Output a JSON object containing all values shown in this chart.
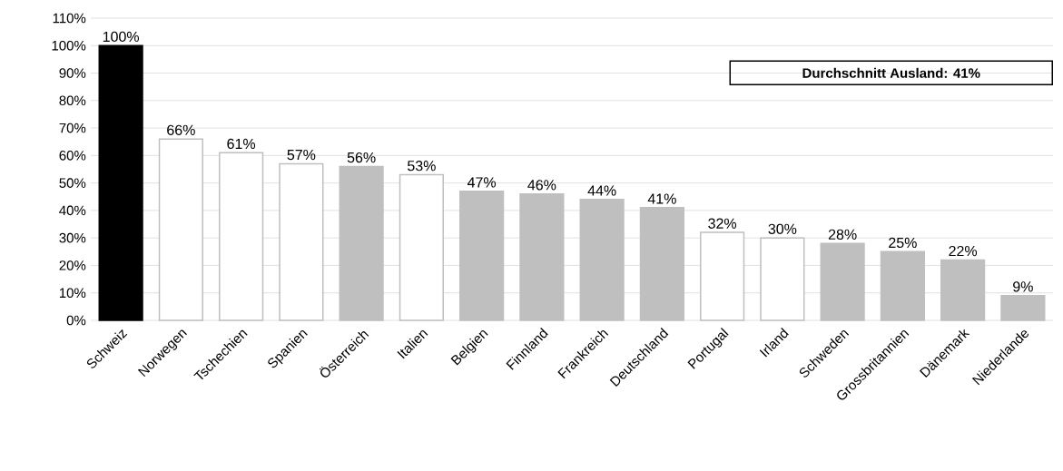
{
  "chart_data": {
    "type": "bar",
    "categories": [
      "Schweiz",
      "Norwegen",
      "Tschechien",
      "Spanien",
      "Österreich",
      "Italien",
      "Belgien",
      "Finnland",
      "Frankreich",
      "Deutschland",
      "Portugal",
      "Irland",
      "Schweden",
      "Grossbritannien",
      "Dänemark",
      "Niederlande"
    ],
    "values": [
      100,
      66,
      61,
      57,
      56,
      53,
      47,
      46,
      44,
      41,
      32,
      30,
      28,
      25,
      22,
      9
    ],
    "value_labels": [
      "100%",
      "66%",
      "61%",
      "57%",
      "56%",
      "53%",
      "47%",
      "46%",
      "44%",
      "41%",
      "32%",
      "30%",
      "28%",
      "25%",
      "22%",
      "9%"
    ],
    "colors": [
      "#000000",
      "#ffffff",
      "#ffffff",
      "#ffffff",
      "#bfbfbf",
      "#ffffff",
      "#bfbfbf",
      "#bfbfbf",
      "#bfbfbf",
      "#bfbfbf",
      "#ffffff",
      "#ffffff",
      "#bfbfbf",
      "#bfbfbf",
      "#bfbfbf",
      "#bfbfbf"
    ],
    "ylim": [
      0,
      110
    ],
    "yticks": [
      {
        "value": 0,
        "label": "0%"
      },
      {
        "value": 10,
        "label": "10%"
      },
      {
        "value": 20,
        "label": "20%"
      },
      {
        "value": 30,
        "label": "30%"
      },
      {
        "value": 40,
        "label": "40%"
      },
      {
        "value": 50,
        "label": "50%"
      },
      {
        "value": 60,
        "label": "60%"
      },
      {
        "value": 70,
        "label": "70%"
      },
      {
        "value": 80,
        "label": "80%"
      },
      {
        "value": 90,
        "label": "90%"
      },
      {
        "value": 100,
        "label": "100%"
      },
      {
        "value": 110,
        "label": "110%"
      }
    ],
    "grid": "y",
    "annotations": [
      "Durchschnitt Ausland: 41%"
    ]
  }
}
